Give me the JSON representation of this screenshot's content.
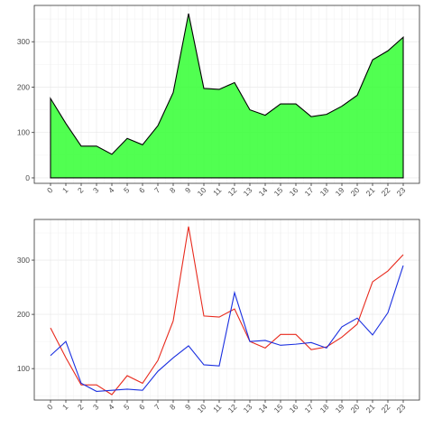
{
  "chart_data": [
    {
      "type": "area",
      "x": [
        "0",
        "1",
        "2",
        "3",
        "4",
        "5",
        "6",
        "7",
        "8",
        "9",
        "10",
        "11",
        "12",
        "13",
        "14",
        "15",
        "16",
        "17",
        "18",
        "19",
        "20",
        "21",
        "22",
        "23"
      ],
      "series": [
        {
          "values": [
            175,
            120,
            70,
            70,
            52,
            87,
            73,
            115,
            188,
            362,
            197,
            195,
            210,
            150,
            138,
            163,
            163,
            135,
            140,
            158,
            182,
            260,
            280,
            310
          ],
          "color": "#33ff33",
          "line_color": "#000000"
        }
      ],
      "yticks": [
        0,
        100,
        200,
        300
      ],
      "ylim": [
        -12,
        380
      ],
      "grid": true
    },
    {
      "type": "line",
      "x": [
        "0",
        "1",
        "2",
        "3",
        "4",
        "5",
        "6",
        "7",
        "8",
        "9",
        "10",
        "11",
        "12",
        "13",
        "14",
        "15",
        "16",
        "17",
        "18",
        "19",
        "20",
        "21",
        "22",
        "23"
      ],
      "series": [
        {
          "values": [
            175,
            120,
            70,
            70,
            52,
            87,
            73,
            115,
            188,
            362,
            197,
            195,
            210,
            150,
            138,
            163,
            163,
            135,
            140,
            158,
            182,
            260,
            280,
            310
          ],
          "color": "#e8291c"
        },
        {
          "values": [
            124,
            150,
            73,
            58,
            60,
            62,
            60,
            95,
            120,
            142,
            107,
            105,
            240,
            150,
            152,
            143,
            145,
            148,
            138,
            177,
            193,
            162,
            203,
            290
          ],
          "color": "#1a2fe0"
        }
      ],
      "yticks": [
        100,
        200,
        300
      ],
      "ylim": [
        42,
        375
      ],
      "grid": true
    }
  ]
}
